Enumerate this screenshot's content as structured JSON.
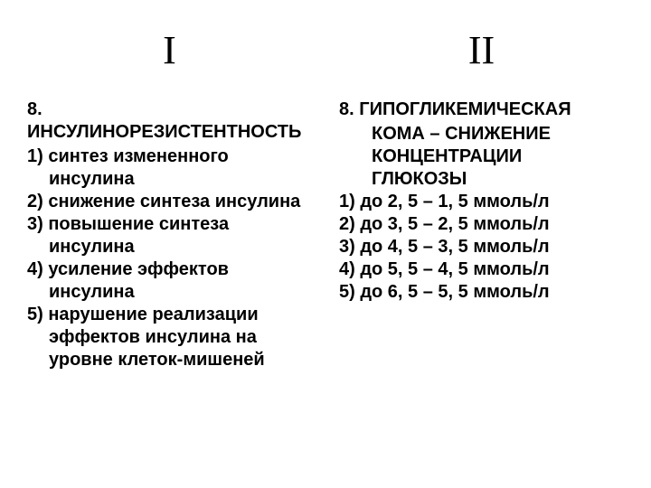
{
  "left": {
    "header": "I",
    "title": "8. ИНСУЛИНОРЕЗИСТЕНТНОСТЬ",
    "options": [
      "1) синтез измененного инсулина",
      "2) снижение синтеза инсулина",
      "3) повышение синтеза инсулина",
      "4) усиление эффектов инсулина",
      "5) нарушение реализации эффектов инсулина на уровне клеток-мишеней"
    ]
  },
  "right": {
    "header": "II",
    "title_line1": "8. ГИПОГЛИКЕМИЧЕСКАЯ",
    "title_line2": "КОМА – СНИЖЕНИЕ",
    "title_line3": "КОНЦЕНТРАЦИИ",
    "title_line4": "ГЛЮКОЗЫ",
    "options": [
      "1) до 2, 5 – 1, 5 ммоль/л",
      "2) до 3, 5 – 2, 5 ммоль/л",
      "3) до 4, 5 – 3, 5 ммоль/л",
      "4) до 5, 5 – 4, 5 ммоль/л",
      "5) до 6, 5 – 5, 5 ммоль/л"
    ]
  },
  "styling": {
    "background_color": "#ffffff",
    "text_color": "#000000",
    "header_fontsize_pt": 33,
    "header_font": "Times New Roman",
    "body_fontsize_pt": 15,
    "body_font": "Arial",
    "body_weight": "bold",
    "line_height": 1.25
  }
}
